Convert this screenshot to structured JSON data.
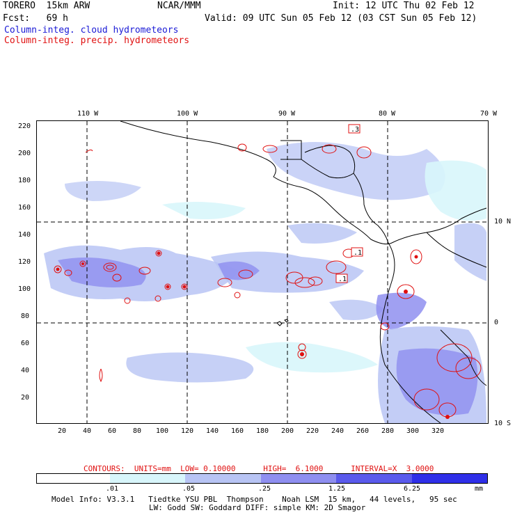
{
  "header": {
    "model": "TORERO  15km ARW",
    "org": "NCAR/MMM",
    "init": "Init: 12 UTC Thu 02 Feb 12",
    "fcst": "Fcst:   69 h",
    "valid": "Valid: 09 UTC Sun 05 Feb 12 (03 CST Sun 05 Feb 12)",
    "cloud_label": "Column-integ. cloud hydrometeors",
    "precip_label": "Column-integ. precip. hydrometeors"
  },
  "map": {
    "top_lon_labels": [
      "110 W",
      "100 W",
      "90 W",
      "80 W",
      "70 W"
    ],
    "right_lat_labels": [
      "10 N",
      "0",
      "10 S"
    ],
    "y_ticks": [
      "220",
      "200",
      "180",
      "160",
      "140",
      "120",
      "100",
      "80",
      "60",
      "40",
      "20"
    ],
    "x_ticks": [
      "20",
      "40",
      "60",
      "80",
      "100",
      "120",
      "140",
      "160",
      "180",
      "200",
      "220",
      "240",
      "260",
      "280",
      "300",
      "320"
    ],
    "contour_labels": [
      ".3",
      ".1",
      ".1"
    ]
  },
  "contours_info": "CONTOURS:  UNITS=mm  LOW= 0.10000      HIGH=  6.1000      INTERVAL=X  3.0000",
  "colorbar": {
    "labels": [
      ".01",
      ".05",
      ".25",
      "1.25",
      "6.25",
      "mm"
    ],
    "colors": [
      "#ffffff",
      "#d8f6fb",
      "#b8c4f4",
      "#8f8ff0",
      "#5a5aec",
      "#2f2fe8",
      "#1010e0"
    ]
  },
  "footer": {
    "line1": "Model Info: V3.3.1   Tiedtke YSU PBL  Thompson    Noah LSM  15 km,   44 levels,   95 sec",
    "line2": "LW: Godd SW: Goddard DIFF: simple KM: 2D Smagor"
  }
}
